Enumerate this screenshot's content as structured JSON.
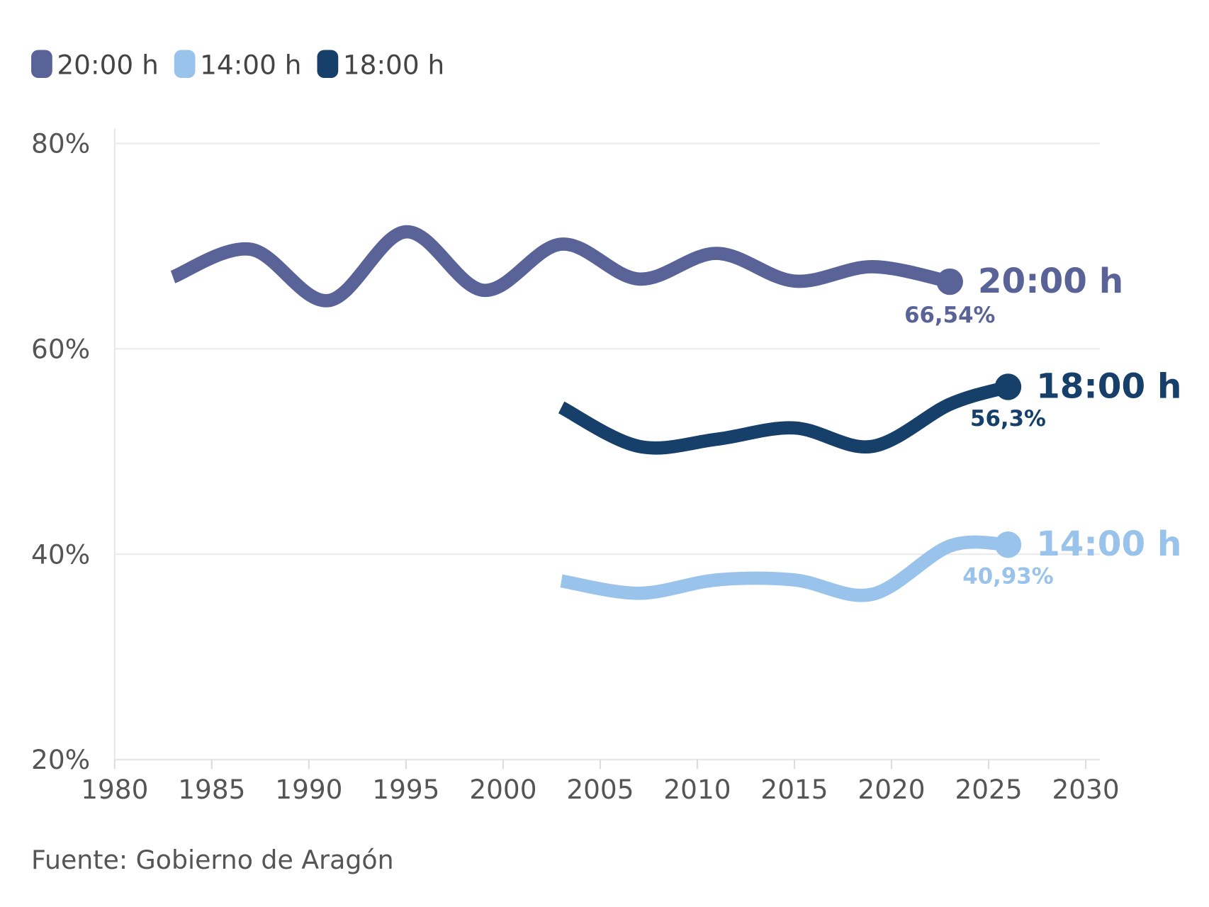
{
  "chart_data": {
    "type": "line",
    "title": "",
    "xlabel": "",
    "ylabel": "",
    "xlim": [
      1980,
      2030
    ],
    "ylim": [
      20,
      80
    ],
    "x_ticks": [
      "1980",
      "1985",
      "1990",
      "1995",
      "2000",
      "2005",
      "2010",
      "2015",
      "2020",
      "2025",
      "2030"
    ],
    "y_ticks": [
      "20%",
      "40%",
      "60%",
      "80%"
    ],
    "grid": "horizontal",
    "legend_position": "top-left",
    "series": [
      {
        "name": "20:00 h",
        "color": "#5a6397",
        "x": [
          1983,
          1987,
          1991,
          1995,
          1999,
          2003,
          2007,
          2011,
          2015,
          2019,
          2023
        ],
        "values": [
          67.0,
          69.7,
          64.7,
          71.4,
          65.7,
          70.2,
          66.8,
          69.3,
          66.6,
          68.0,
          66.54
        ],
        "end_label": "20:00 h",
        "value_label": "66,54%"
      },
      {
        "name": "14:00 h",
        "color": "#99c3ea",
        "x": [
          2003,
          2007,
          2011,
          2015,
          2019,
          2023,
          2026
        ],
        "values": [
          37.4,
          36.2,
          37.5,
          37.5,
          36.1,
          40.8,
          40.93
        ],
        "end_label": "14:00 h",
        "value_label": "40,93%"
      },
      {
        "name": "18:00 h",
        "color": "#163f6a",
        "x": [
          2003,
          2007,
          2011,
          2015,
          2019,
          2023,
          2026
        ],
        "values": [
          54.3,
          50.5,
          51.2,
          52.3,
          50.5,
          54.6,
          56.3
        ],
        "end_label": "18:00 h",
        "value_label": "56,3%"
      }
    ],
    "source": "Fuente: Gobierno de Aragón"
  }
}
